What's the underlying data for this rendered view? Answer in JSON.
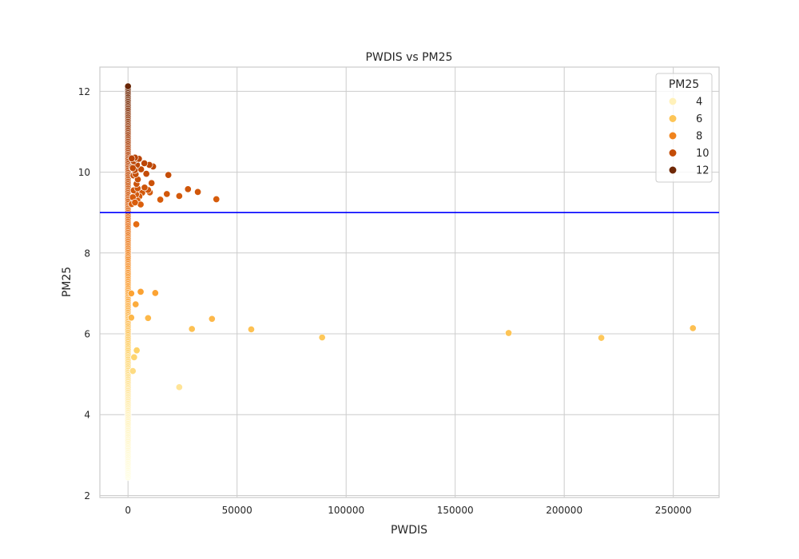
{
  "chart_data": {
    "type": "scatter",
    "title": "PWDIS vs PM25",
    "xlabel": "PWDIS",
    "ylabel": "PM25",
    "xlim": [
      -12900,
      271000
    ],
    "ylim": [
      1.95,
      12.6
    ],
    "xticks": [
      0,
      50000,
      100000,
      150000,
      200000,
      250000
    ],
    "yticks": [
      2,
      4,
      6,
      8,
      10,
      12
    ],
    "grid": true,
    "hline": {
      "y": 9.0,
      "color": "#0000ff"
    },
    "hue": "PM25",
    "colormap": [
      "#ffffe5",
      "#fff1b9",
      "#fed063",
      "#fb9929",
      "#e2650e",
      "#b23e03",
      "#662506"
    ],
    "legend": {
      "title": "PM25",
      "placement": "top-right",
      "entries": [
        {
          "label": "4",
          "value": 4
        },
        {
          "label": "6",
          "value": 6
        },
        {
          "label": "8",
          "value": 8
        },
        {
          "label": "10",
          "value": 10
        },
        {
          "label": "12",
          "value": 12
        }
      ]
    },
    "points": [
      [
        23500,
        4.68
      ],
      [
        2200,
        5.08
      ],
      [
        2800,
        5.42
      ],
      [
        4000,
        5.59
      ],
      [
        89000,
        5.91
      ],
      [
        217000,
        5.9
      ],
      [
        174500,
        6.02
      ],
      [
        259000,
        6.14
      ],
      [
        56500,
        6.11
      ],
      [
        29300,
        6.12
      ],
      [
        38500,
        6.37
      ],
      [
        9200,
        6.39
      ],
      [
        1500,
        6.4
      ],
      [
        3500,
        6.73
      ],
      [
        1500,
        7.0
      ],
      [
        5800,
        7.04
      ],
      [
        12500,
        7.01
      ],
      [
        3800,
        8.71
      ],
      [
        40500,
        9.33
      ],
      [
        32000,
        9.51
      ],
      [
        27500,
        9.58
      ],
      [
        23500,
        9.41
      ],
      [
        17800,
        9.46
      ],
      [
        14800,
        9.32
      ],
      [
        10000,
        9.5
      ],
      [
        9200,
        9.56
      ],
      [
        6500,
        9.49
      ],
      [
        5200,
        9.4
      ],
      [
        4300,
        9.3
      ],
      [
        3700,
        9.45
      ],
      [
        2600,
        9.55
      ],
      [
        5800,
        9.2
      ],
      [
        4400,
        9.6
      ],
      [
        2200,
        9.38
      ],
      [
        1700,
        9.21
      ],
      [
        7600,
        9.62
      ],
      [
        3200,
        9.25
      ],
      [
        10800,
        9.73
      ],
      [
        3900,
        9.71
      ],
      [
        2500,
        9.92
      ],
      [
        18500,
        9.93
      ],
      [
        8400,
        9.96
      ],
      [
        4500,
        9.82
      ],
      [
        3500,
        9.95
      ],
      [
        6000,
        10.07
      ],
      [
        1800,
        10.12
      ],
      [
        4100,
        10.18
      ],
      [
        3100,
        10.05
      ],
      [
        11500,
        10.14
      ],
      [
        9800,
        10.18
      ],
      [
        7500,
        10.22
      ],
      [
        2600,
        10.27
      ],
      [
        4300,
        10.32
      ],
      [
        5000,
        10.33
      ],
      [
        3200,
        10.36
      ],
      [
        1700,
        10.34
      ],
      [
        2200,
        10.1
      ]
    ]
  }
}
